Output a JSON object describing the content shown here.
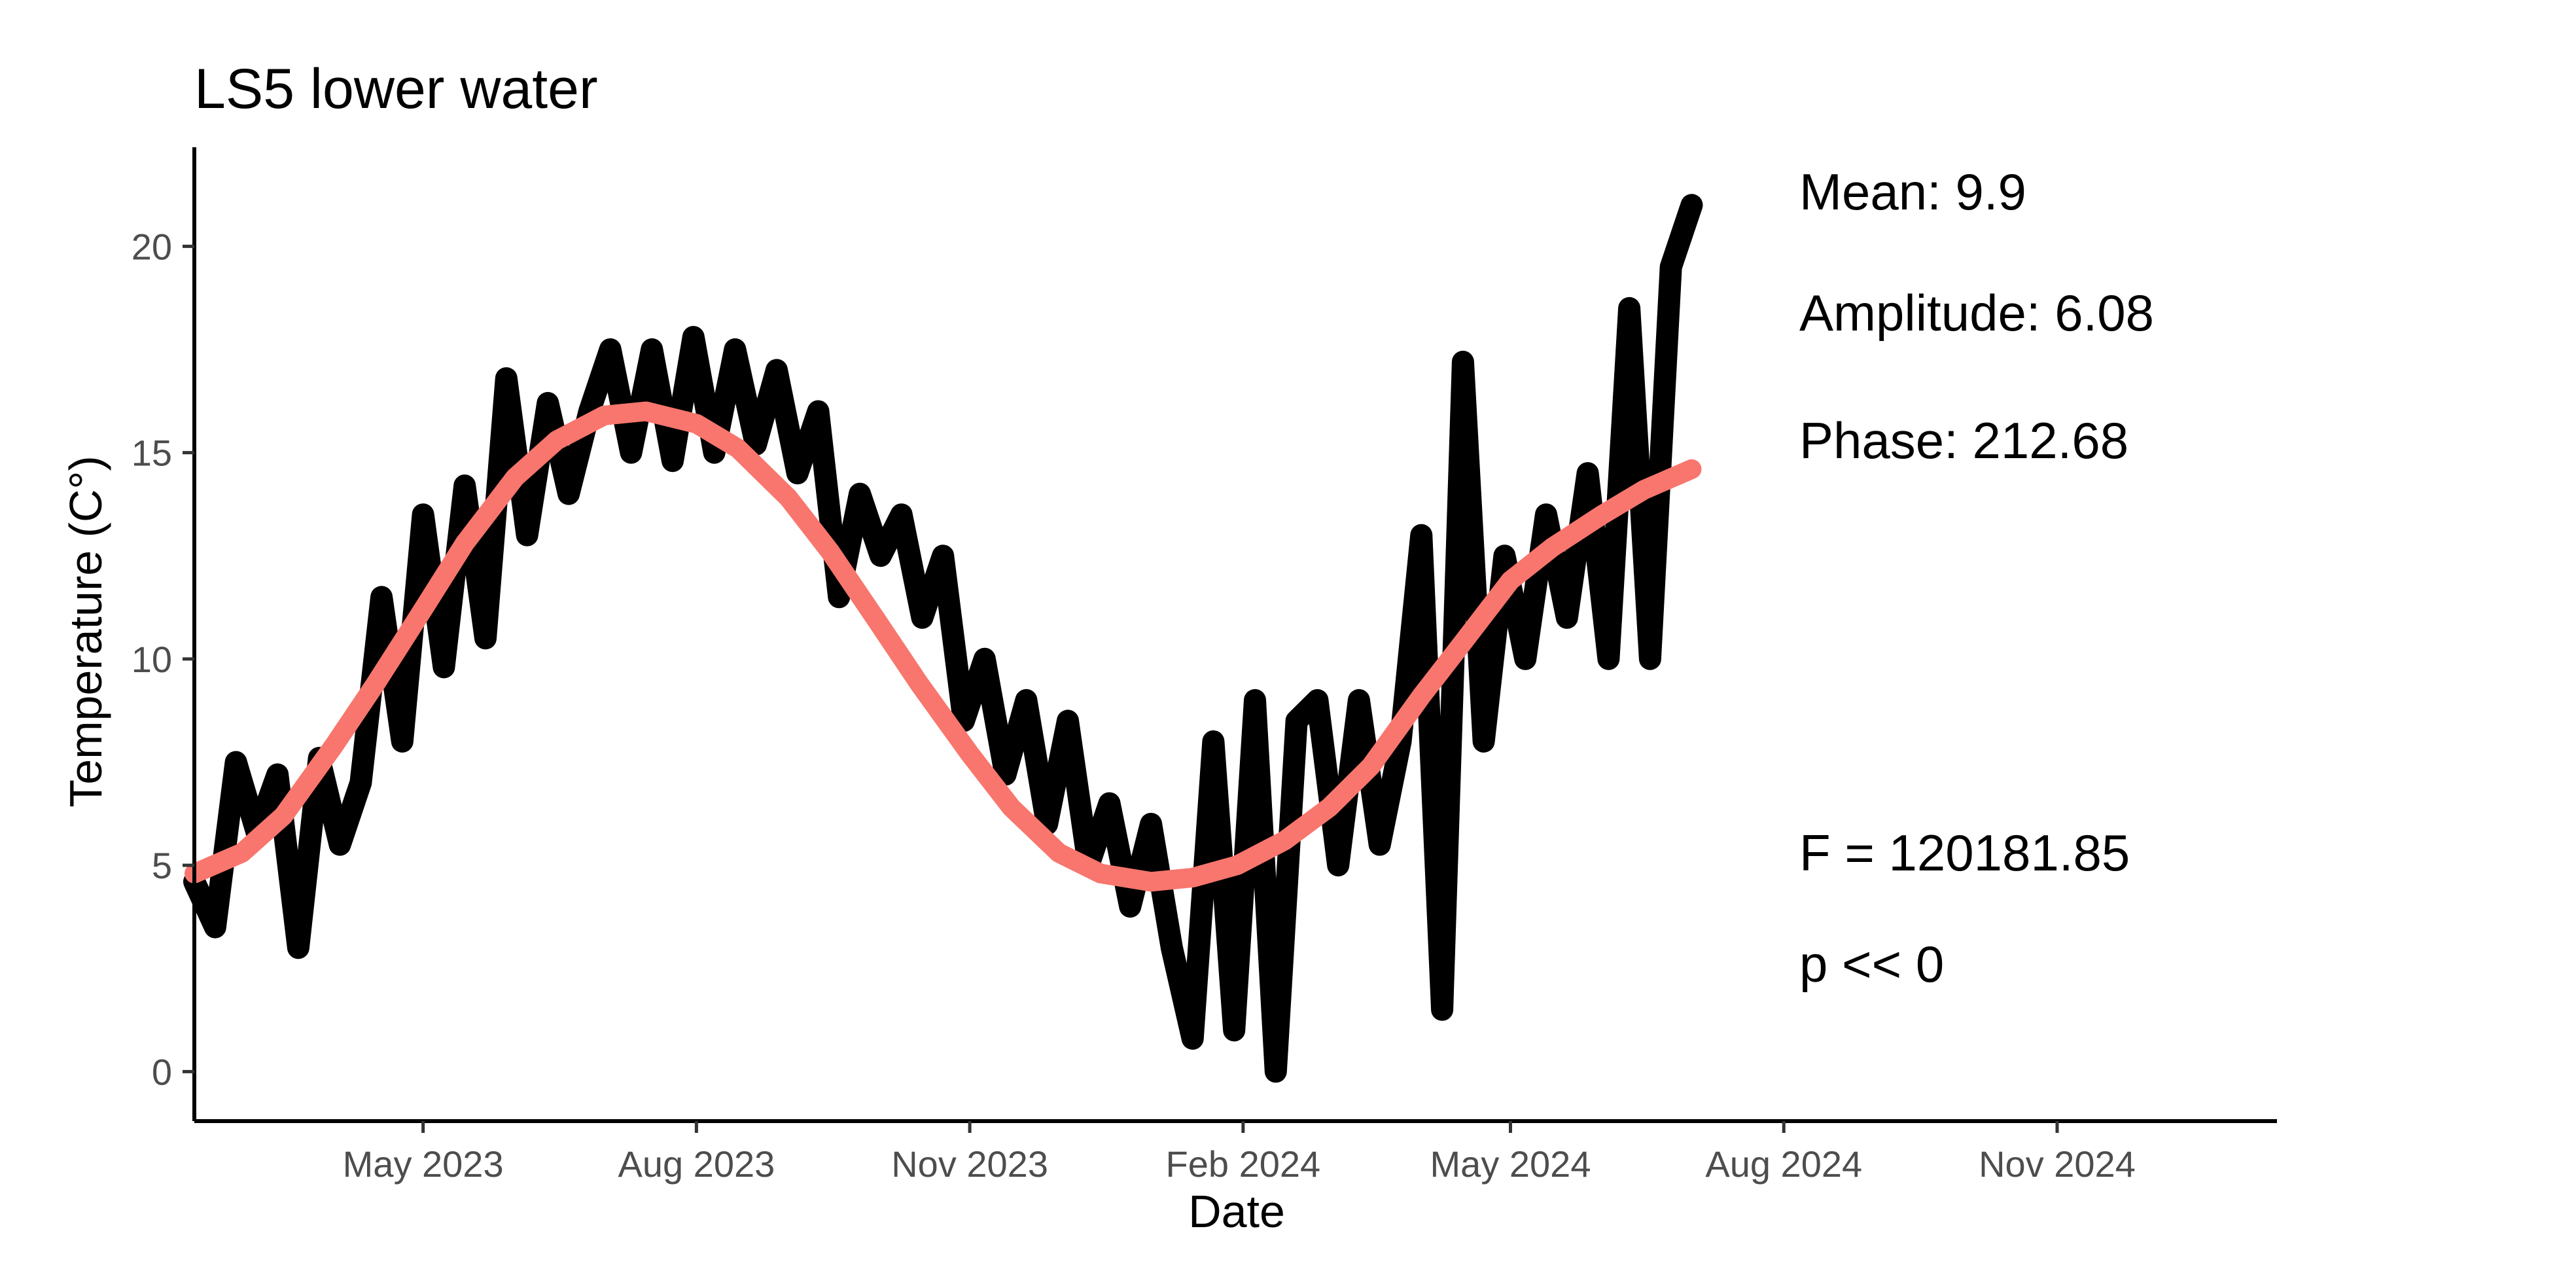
{
  "chart_data": {
    "type": "line",
    "title": "LS5 lower water",
    "xlabel": "Date",
    "ylabel": "Temperature (C°)",
    "x_tick_labels": [
      "May 2023",
      "Aug 2023",
      "Nov 2023",
      "Feb 2024",
      "May 2024",
      "Aug 2024",
      "Nov 2024"
    ],
    "y_tick_labels": [
      "0",
      "5",
      "10",
      "15",
      "20"
    ],
    "xlim": [
      "2023-02-13",
      "2025-01-14"
    ],
    "ylim": [
      -1.2,
      22.4
    ],
    "grid": false,
    "colors": {
      "observed": "#000000",
      "fit": "#F8766D"
    },
    "series": [
      {
        "type": "line",
        "x": [
          "2023-02-13",
          "2023-02-20",
          "2023-02-27",
          "2023-03-06",
          "2023-03-13",
          "2023-03-20",
          "2023-03-27",
          "2023-04-03",
          "2023-04-10",
          "2023-04-17",
          "2023-04-24",
          "2023-05-01",
          "2023-05-08",
          "2023-05-15",
          "2023-05-22",
          "2023-05-29",
          "2023-06-05",
          "2023-06-12",
          "2023-06-19",
          "2023-06-26",
          "2023-07-03",
          "2023-07-10",
          "2023-07-17",
          "2023-07-24",
          "2023-07-31",
          "2023-08-07",
          "2023-08-14",
          "2023-08-21",
          "2023-08-28",
          "2023-09-04",
          "2023-09-11",
          "2023-09-18",
          "2023-09-25",
          "2023-10-02",
          "2023-10-09",
          "2023-10-16",
          "2023-10-23",
          "2023-10-30",
          "2023-11-06",
          "2023-11-13",
          "2023-11-20",
          "2023-11-27",
          "2023-12-04",
          "2023-12-11",
          "2023-12-18",
          "2023-12-25",
          "2024-01-01",
          "2024-01-08",
          "2024-01-15",
          "2024-01-22",
          "2024-01-29",
          "2024-02-05",
          "2024-02-12",
          "2024-02-19",
          "2024-02-26",
          "2024-03-04",
          "2024-03-11",
          "2024-03-18",
          "2024-03-25",
          "2024-04-01",
          "2024-04-08",
          "2024-04-15",
          "2024-04-22",
          "2024-04-29",
          "2024-05-06",
          "2024-05-13",
          "2024-05-20",
          "2024-05-27",
          "2024-06-03",
          "2024-06-10",
          "2024-06-17",
          "2024-06-24",
          "2024-07-01"
        ],
        "values": [
          4.6,
          3.5,
          7.5,
          5.8,
          7.2,
          3.0,
          7.6,
          5.5,
          7.0,
          11.5,
          8.0,
          13.5,
          9.8,
          14.2,
          10.5,
          16.8,
          13.0,
          16.2,
          14.0,
          16.0,
          17.5,
          15.0,
          17.5,
          14.8,
          17.8,
          15.0,
          17.5,
          15.2,
          17.0,
          14.5,
          16.0,
          11.5,
          14.0,
          12.5,
          13.5,
          11.0,
          12.5,
          8.5,
          10.0,
          7.2,
          9.0,
          6.0,
          8.5,
          5.0,
          6.5,
          4.0,
          6.0,
          3.0,
          0.8,
          8.0,
          1.0,
          9.0,
          0.0,
          8.5,
          9.0,
          5.0,
          9.0,
          5.5,
          8.0,
          13.0,
          1.5,
          17.2,
          8.0,
          12.5,
          10.0,
          13.5,
          11.0,
          14.5,
          10.0,
          18.5,
          10.0,
          19.5,
          21.0
        ]
      },
      {
        "type": "line",
        "x": [
          "2023-02-13",
          "2023-03-01",
          "2023-03-15",
          "2023-04-01",
          "2023-04-15",
          "2023-05-01",
          "2023-05-15",
          "2023-06-01",
          "2023-06-15",
          "2023-07-01",
          "2023-07-15",
          "2023-08-01",
          "2023-08-15",
          "2023-09-01",
          "2023-09-15",
          "2023-10-01",
          "2023-10-15",
          "2023-11-01",
          "2023-11-15",
          "2023-12-01",
          "2023-12-15",
          "2024-01-01",
          "2024-01-15",
          "2024-01-30",
          "2024-02-15",
          "2024-03-01",
          "2024-03-15",
          "2024-04-01",
          "2024-04-15",
          "2024-05-01",
          "2024-05-15",
          "2024-06-01",
          "2024-06-15",
          "2024-07-01"
        ],
        "values": [
          4.8,
          5.3,
          6.2,
          7.9,
          9.4,
          11.2,
          12.8,
          14.4,
          15.3,
          15.9,
          16.0,
          15.7,
          15.1,
          13.9,
          12.6,
          10.9,
          9.4,
          7.7,
          6.4,
          5.3,
          4.8,
          4.6,
          4.7,
          5.0,
          5.6,
          6.4,
          7.4,
          9.1,
          10.4,
          11.9,
          12.7,
          13.5,
          14.1,
          14.6
        ]
      }
    ],
    "annotations": {
      "mean": "Mean: 9.9",
      "amplitude": "Amplitude: 6.08",
      "phase": "Phase: 212.68",
      "f_stat": "F =  120181.85",
      "p_value": "p <<  0"
    }
  }
}
